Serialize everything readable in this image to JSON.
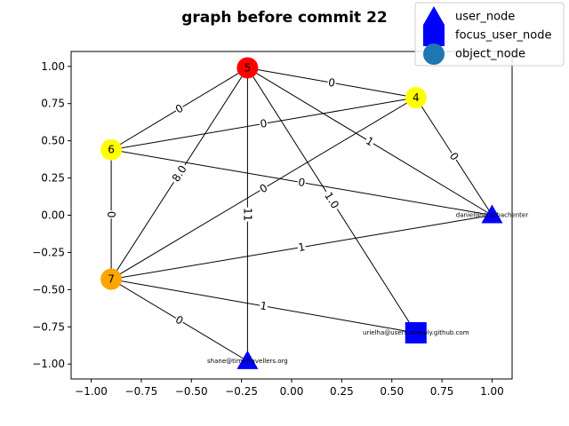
{
  "chart_data": {
    "type": "network",
    "title": "graph before commit 22",
    "xlim": [
      -1.1,
      1.1
    ],
    "ylim": [
      -1.1,
      1.1
    ],
    "x_ticks": [
      "−1.00",
      "−0.75",
      "−0.50",
      "−0.25",
      "0.00",
      "0.25",
      "0.50",
      "0.75",
      "1.00"
    ],
    "x_tick_values": [
      -1.0,
      -0.75,
      -0.5,
      -0.25,
      0.0,
      0.25,
      0.5,
      0.75,
      1.0
    ],
    "y_ticks": [
      "1.00",
      "0.75",
      "0.50",
      "0.25",
      "0.00",
      "−0.25",
      "−0.50",
      "−0.75",
      "−1.00"
    ],
    "y_tick_values": [
      1.0,
      0.75,
      0.5,
      0.25,
      0.0,
      -0.25,
      -0.5,
      -0.75,
      -1.0
    ],
    "legend": {
      "placement": "top-right",
      "entries": [
        {
          "label": "user_node",
          "marker": "triangle",
          "color": "#0000ff"
        },
        {
          "label": "focus_user_node",
          "marker": "square",
          "color": "#0000ff"
        },
        {
          "label": "object_node",
          "marker": "circle",
          "color": "#1f77b4"
        }
      ]
    },
    "nodes": [
      {
        "id": "5",
        "label": "5",
        "kind": "object",
        "x": -0.22,
        "y": 0.99,
        "color": "#ff0000"
      },
      {
        "id": "4",
        "label": "4",
        "kind": "object",
        "x": 0.62,
        "y": 0.79,
        "color": "#ffff00"
      },
      {
        "id": "6",
        "label": "6",
        "kind": "object",
        "x": -0.9,
        "y": 0.44,
        "color": "#ffff00"
      },
      {
        "id": "7",
        "label": "7",
        "kind": "object",
        "x": -0.9,
        "y": -0.43,
        "color": "#ffa500"
      },
      {
        "id": "daniel",
        "label": "daniel@stutzbachenter",
        "kind": "user",
        "x": 1.0,
        "y": 0.0,
        "color": "#0000ff"
      },
      {
        "id": "urielha",
        "label": "urielha@users.noreply.github.com",
        "kind": "focus",
        "x": 0.62,
        "y": -0.79,
        "color": "#0000ff"
      },
      {
        "id": "shane",
        "label": "shane@timetravellers.org",
        "kind": "user",
        "x": -0.22,
        "y": -0.98,
        "color": "#0000ff"
      }
    ],
    "edges": [
      {
        "source": "5",
        "target": "4",
        "label": "0"
      },
      {
        "source": "5",
        "target": "6",
        "label": "0"
      },
      {
        "source": "5",
        "target": "daniel",
        "label": "1"
      },
      {
        "source": "5",
        "target": "urielha",
        "label": "1.0"
      },
      {
        "source": "5",
        "target": "shane",
        "label": "11"
      },
      {
        "source": "5",
        "target": "7",
        "label": "8.0"
      },
      {
        "source": "4",
        "target": "6",
        "label": "0"
      },
      {
        "source": "4",
        "target": "daniel",
        "label": "0"
      },
      {
        "source": "4",
        "target": "7",
        "label": "0"
      },
      {
        "source": "6",
        "target": "daniel",
        "label": "0"
      },
      {
        "source": "6",
        "target": "7",
        "label": "0"
      },
      {
        "source": "7",
        "target": "daniel",
        "label": "1"
      },
      {
        "source": "7",
        "target": "urielha",
        "label": "1"
      },
      {
        "source": "7",
        "target": "shane",
        "label": "0"
      }
    ]
  }
}
